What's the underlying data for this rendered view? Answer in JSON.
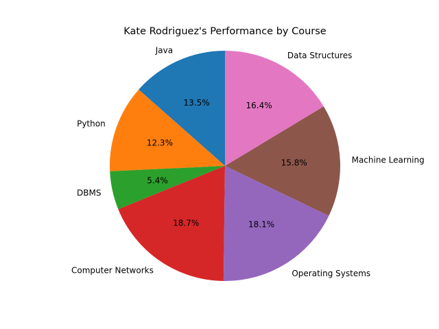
{
  "chart_data": {
    "type": "pie",
    "title": "Kate Rodriguez's Performance by Course",
    "start_angle_deg": 90,
    "direction": "counterclockwise",
    "slices": [
      {
        "label": "Java",
        "percent": 13.5,
        "color": "#1f77b4"
      },
      {
        "label": "Python",
        "percent": 12.3,
        "color": "#ff7f0e"
      },
      {
        "label": "DBMS",
        "percent": 5.4,
        "color": "#2ca02c"
      },
      {
        "label": "Computer Networks",
        "percent": 18.7,
        "color": "#d62728"
      },
      {
        "label": "Operating Systems",
        "percent": 18.1,
        "color": "#9467bd"
      },
      {
        "label": "Machine Learning",
        "percent": 15.8,
        "color": "#8c564b"
      },
      {
        "label": "Data Structures",
        "percent": 16.4,
        "color": "#e377c2"
      }
    ]
  }
}
